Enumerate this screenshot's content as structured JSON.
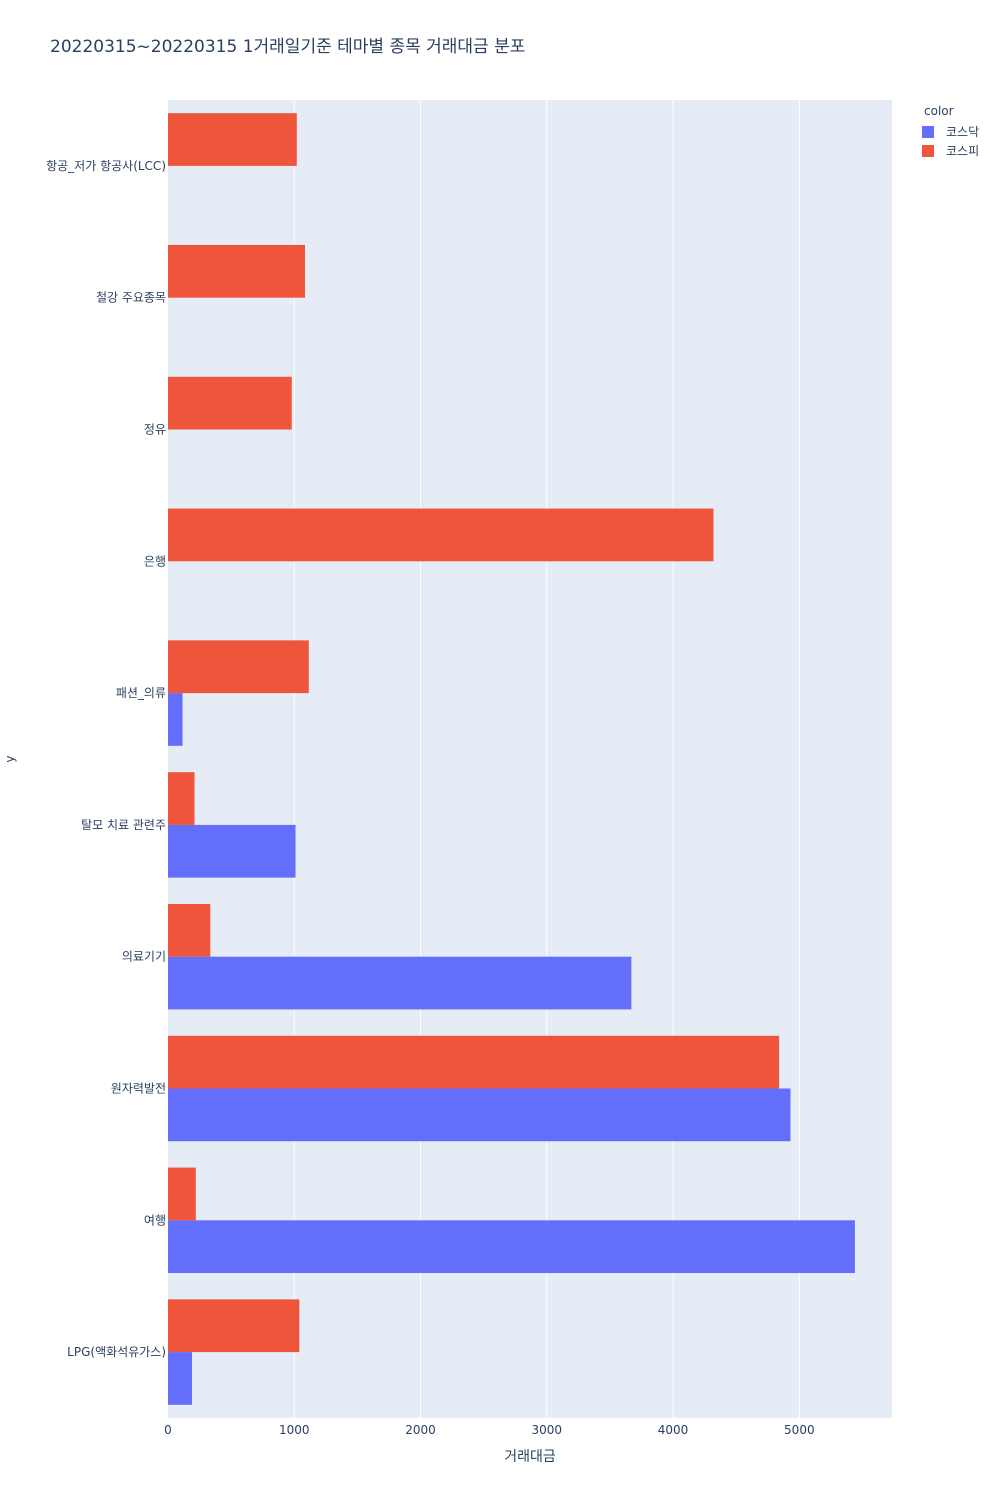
{
  "chart_data": {
    "type": "bar",
    "orientation": "horizontal",
    "title": "20220315~20220315 1거래일기준 테마별 종목 거래대금 분포",
    "xlabel": "거래대금",
    "ylabel": "y",
    "xlim": [
      0,
      5734
    ],
    "xticks": [
      0,
      1000,
      2000,
      3000,
      4000,
      5000
    ],
    "categories": [
      "LPG(액화석유가스)",
      "여행",
      "원자력발전",
      "의료기기",
      "탈모 치료 관련주",
      "패션_의류",
      "은행",
      "정유",
      "철강 주요종목",
      "항공_저가 항공사(LCC)"
    ],
    "series": [
      {
        "name": "코스닥",
        "color": "#636efa",
        "values": [
          190,
          5440,
          4930,
          3670,
          1010,
          115,
          0,
          0,
          0,
          0
        ]
      },
      {
        "name": "코스피",
        "color": "#ef553b",
        "values": [
          1040,
          220,
          4840,
          335,
          210,
          1115,
          4320,
          980,
          1085,
          1020
        ]
      }
    ],
    "legend": {
      "title": "color",
      "placement": "top-right"
    },
    "grid": true,
    "background": "#e5ecf6"
  }
}
